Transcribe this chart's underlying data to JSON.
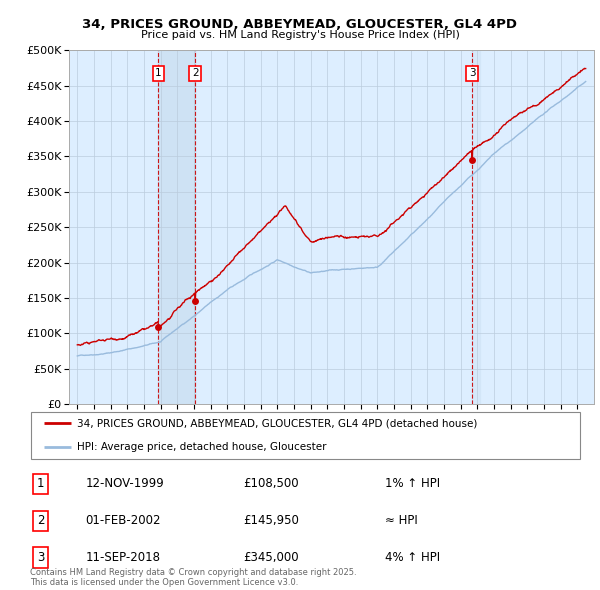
{
  "title": "34, PRICES GROUND, ABBEYMEAD, GLOUCESTER, GL4 4PD",
  "subtitle": "Price paid vs. HM Land Registry's House Price Index (HPI)",
  "ylabel_ticks": [
    "£0",
    "£50K",
    "£100K",
    "£150K",
    "£200K",
    "£250K",
    "£300K",
    "£350K",
    "£400K",
    "£450K",
    "£500K"
  ],
  "ytick_values": [
    0,
    50000,
    100000,
    150000,
    200000,
    250000,
    300000,
    350000,
    400000,
    450000,
    500000
  ],
  "xlim": [
    1994.5,
    2026.0
  ],
  "ylim": [
    0,
    500000
  ],
  "sale_dates_num": [
    1999.87,
    2002.08,
    2018.69
  ],
  "sale_prices": [
    108500,
    145950,
    345000
  ],
  "sale_labels": [
    "1",
    "2",
    "3"
  ],
  "legend_line1": "34, PRICES GROUND, ABBEYMEAD, GLOUCESTER, GL4 4PD (detached house)",
  "legend_line2": "HPI: Average price, detached house, Gloucester",
  "table_entries": [
    [
      "1",
      "12-NOV-1999",
      "£108,500",
      "1% ↑ HPI"
    ],
    [
      "2",
      "01-FEB-2002",
      "£145,950",
      "≈ HPI"
    ],
    [
      "3",
      "11-SEP-2018",
      "£345,000",
      "4% ↑ HPI"
    ]
  ],
  "footer": "Contains HM Land Registry data © Crown copyright and database right 2025.\nThis data is licensed under the Open Government Licence v3.0.",
  "hpi_color": "#99bbdd",
  "price_color": "#cc0000",
  "vline_color": "#cc0000",
  "bg_color": "#ffffff",
  "plot_bg_color": "#ddeeff",
  "grid_color": "#bbccdd",
  "shade_color": "#c8ddf0"
}
